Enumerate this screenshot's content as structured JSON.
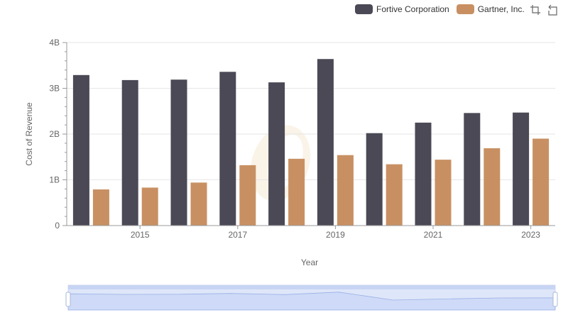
{
  "colors": {
    "fortive": "#4a4955",
    "gartner": "#c89062",
    "axis": "#999999",
    "grid": "#e6e6e6"
  },
  "legend": {
    "fortive_label": "Fortive Corporation",
    "gartner_label": "Gartner, Inc."
  },
  "toolbox": {
    "zoom_icon": "data-zoom-icon",
    "restore_icon": "restore-icon"
  },
  "chart_data": {
    "type": "bar",
    "xlabel": "Year",
    "ylabel": "Cost of Revenue",
    "categories": [
      "2014",
      "2015",
      "2016",
      "2017",
      "2018",
      "2019",
      "2020",
      "2021",
      "2022",
      "2023"
    ],
    "x_tick_labels": [
      "2015",
      "2017",
      "2019",
      "2021",
      "2023"
    ],
    "y_tick_labels": [
      "0",
      "1B",
      "2B",
      "3B",
      "4B"
    ],
    "ylim": [
      0,
      4000000000
    ],
    "series": [
      {
        "name": "Fortive Corporation",
        "values": [
          3290000000,
          3180000000,
          3190000000,
          3360000000,
          3130000000,
          3640000000,
          2020000000,
          2250000000,
          2460000000,
          2470000000
        ]
      },
      {
        "name": "Gartner, Inc.",
        "values": [
          790000000,
          830000000,
          940000000,
          1320000000,
          1460000000,
          1540000000,
          1340000000,
          1440000000,
          1690000000,
          1900000000
        ]
      }
    ],
    "grid": true,
    "legend_position": "top-right",
    "data_zoom": true
  }
}
